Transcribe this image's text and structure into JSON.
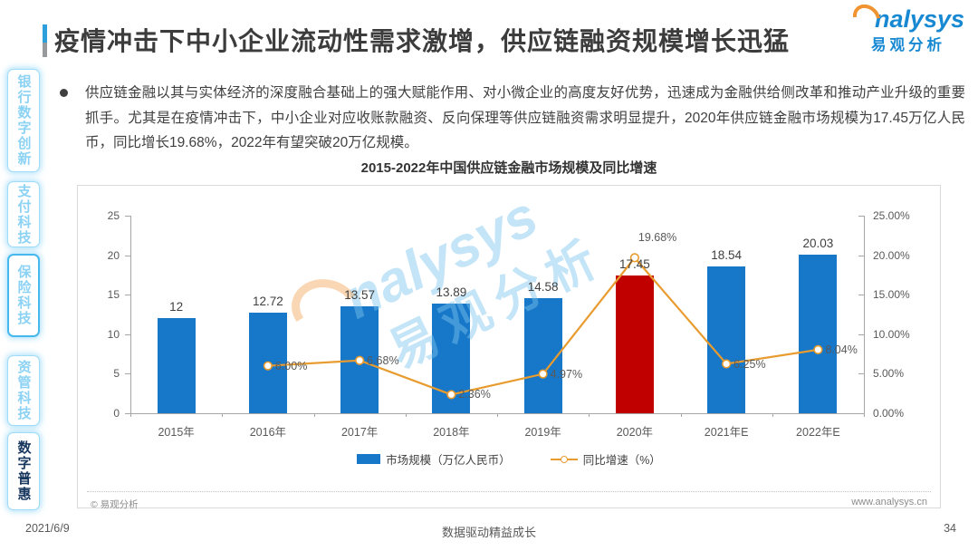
{
  "page": {
    "date": "2021/6/9",
    "tagline": "数据驱动精益成长",
    "page_number": "34"
  },
  "header": {
    "title": "疫情冲击下中小企业流动性需求激增，供应链融资规模增长迅猛",
    "logo": {
      "en": "nalysys",
      "cn": "易观分析"
    }
  },
  "sidebar": {
    "items": [
      {
        "label": "银行数字创新",
        "active": false
      },
      {
        "label": "支付科技",
        "active": false
      },
      {
        "label": "保险科技",
        "active": false
      },
      {
        "label": "资管科技",
        "active": false
      },
      {
        "label": "数字普惠",
        "active": true
      }
    ]
  },
  "content": {
    "bullet_text": "供应链金融以其与实体经济的深度融合基础上的强大赋能作用、对小微企业的高度友好优势，迅速成为金融供给侧改革和推动产业升级的重要抓手。尤其是在疫情冲击下，中小企业对应收账款融资、反向保理等供应链融资需求明显提升，2020年供应链金融市场规模为17.45万亿人民币，同比增长19.68%，2022年有望突破20万亿规模。"
  },
  "chart_card": {
    "source": "© 易观分析",
    "website": "www.analysys.cn",
    "watermark_en": "nalysys",
    "watermark_cn": "易观分析"
  },
  "chart_data": {
    "type": "bar+line",
    "title": "2015-2022年中国供应链金融市场规模及同比增速",
    "categories": [
      "2015年",
      "2016年",
      "2017年",
      "2018年",
      "2019年",
      "2020年",
      "2021年E",
      "2022年E"
    ],
    "series": [
      {
        "name": "市场规模（万亿人民币）",
        "type": "bar",
        "values": [
          12,
          12.72,
          13.57,
          13.89,
          14.58,
          17.45,
          18.54,
          20.03
        ],
        "labels": [
          "12",
          "12.72",
          "13.57",
          "13.89",
          "14.58",
          "17.45",
          "18.54",
          "20.03"
        ]
      },
      {
        "name": "同比增速（%）",
        "type": "line",
        "values": [
          null,
          6.0,
          6.68,
          2.36,
          4.97,
          19.68,
          6.25,
          8.04
        ],
        "labels": [
          null,
          "6.00%",
          "6.68%",
          "2.36%",
          "4.97%",
          "19.68%",
          "6.25%",
          "8.04%"
        ]
      }
    ],
    "left_axis": {
      "min": 0,
      "max": 25,
      "ticks": [
        "0",
        "5",
        "10",
        "15",
        "20",
        "25"
      ]
    },
    "right_axis": {
      "min": 0,
      "max": 25,
      "ticks": [
        "0.00%",
        "5.00%",
        "10.00%",
        "15.00%",
        "20.00%",
        "25.00%"
      ]
    },
    "highlight_index": 5,
    "bar_color": "#1777C8",
    "highlight_color": "#C00000",
    "line_color": "#E89B2E",
    "grid": false,
    "legend_position": "bottom"
  }
}
